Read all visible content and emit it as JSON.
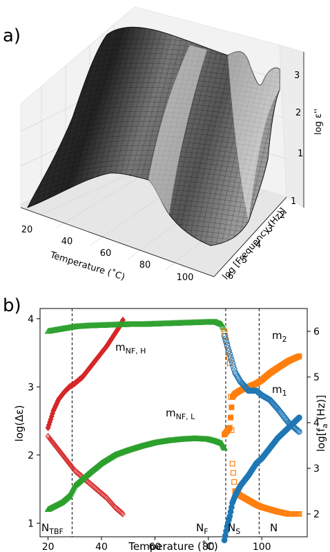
{
  "panel_a": {
    "label": "a)",
    "xlabel": "Temperature (˚C)",
    "ylabel": "log [Frequency (Hz)]",
    "zlabel": "log ε''",
    "x_ticks": [
      "20",
      "40",
      "60",
      "80",
      "100"
    ],
    "y_ticks": [
      "1",
      "2",
      "3",
      "4",
      "5",
      "6"
    ],
    "z_ticks": [
      "1",
      "2",
      "3"
    ]
  },
  "panel_b": {
    "label": "b)",
    "xlabel": "Temperature (˚C)",
    "ylabel_left": "log(Δε)",
    "ylabel_right": "log[f",
    "ylabel_right_sub": "a",
    "ylabel_right_end": " (Hz)]",
    "x_ticks": [
      "20",
      "40",
      "60",
      "80",
      "100"
    ],
    "y_left_ticks": [
      "1",
      "2",
      "3",
      "4"
    ],
    "y_right_ticks": [
      "2",
      "3",
      "4",
      "5",
      "6"
    ],
    "phases": [
      {
        "main": "N",
        "sub": "TBF"
      },
      {
        "main": "N",
        "sub": "F"
      },
      {
        "main": "N",
        "sub": "S"
      },
      {
        "main": "N",
        "sub": ""
      }
    ],
    "mode_labels": [
      {
        "main": "m",
        "sub": "NF, H"
      },
      {
        "main": "m",
        "sub": "NF, L"
      },
      {
        "main": "m",
        "sub": "2"
      },
      {
        "main": "m",
        "sub": "1"
      }
    ]
  },
  "chart_data": [
    {
      "type": "surface",
      "xlabel": "Temperature (˚C)",
      "ylabel": "log [Frequency (Hz)]",
      "zlabel": "log ε''",
      "xlim": [
        18,
        115
      ],
      "ylim": [
        0.5,
        6.5
      ],
      "zlim": [
        0,
        3.4
      ],
      "surface_ridge_profile": {
        "temperature": [
          20,
          30,
          40,
          50,
          60,
          70,
          80,
          84,
          87,
          90,
          95,
          100,
          105,
          110,
          114
        ],
        "peak_log_eps": [
          2.9,
          3.1,
          3.2,
          3.2,
          3.2,
          3.2,
          3.25,
          3.3,
          2.4,
          2.6,
          2.7,
          2.9,
          3.0,
          3.05,
          3.1
        ]
      },
      "grid": true
    },
    {
      "type": "scatter",
      "xlabel": "Temperature (˚C)",
      "ylabel": "log(Δε)",
      "y2label": "log[f_a (Hz)]",
      "xlim": [
        17,
        117
      ],
      "ylim": [
        0.8,
        4.15
      ],
      "y2lim": [
        1.5,
        6.5
      ],
      "vlines": [
        29,
        86.5,
        99
      ],
      "series": [
        {
          "name": "m_NF,H",
          "axis": "left",
          "marker": "filled-diamond",
          "color": "#d62728",
          "x": [
            20,
            22,
            24,
            26,
            28,
            30,
            33,
            36,
            39,
            42,
            45,
            47,
            48
          ],
          "y": [
            2.4,
            2.65,
            2.82,
            2.92,
            3.0,
            3.05,
            3.15,
            3.3,
            3.45,
            3.6,
            3.78,
            3.9,
            3.98
          ]
        },
        {
          "name": "m_NF,H",
          "axis": "right",
          "marker": "open-diamond",
          "color": "#d62728",
          "x": [
            20,
            22,
            24,
            26,
            28,
            30,
            33,
            36,
            39,
            42,
            45,
            47,
            48
          ],
          "y": [
            3.7,
            3.55,
            3.4,
            3.25,
            3.1,
            2.95,
            2.8,
            2.65,
            2.5,
            2.35,
            2.15,
            2.05,
            2.0
          ]
        },
        {
          "name": "m_NF,L",
          "axis": "left",
          "marker": "filled-triangle",
          "color": "#2ca02c",
          "x": [
            20,
            25,
            28,
            30,
            35,
            40,
            45,
            50,
            55,
            60,
            65,
            70,
            75,
            80,
            83,
            85,
            86
          ],
          "y": [
            1.2,
            1.3,
            1.4,
            1.55,
            1.72,
            1.88,
            2.0,
            2.07,
            2.13,
            2.18,
            2.21,
            2.23,
            2.24,
            2.23,
            2.2,
            2.17,
            2.1
          ]
        },
        {
          "name": "m_NF,L",
          "axis": "right",
          "marker": "open-triangle",
          "color": "#2ca02c",
          "x": [
            20,
            25,
            30,
            35,
            40,
            45,
            50,
            55,
            60,
            65,
            70,
            75,
            80,
            83,
            85,
            86
          ],
          "y": [
            6.0,
            6.05,
            6.1,
            6.12,
            6.13,
            6.14,
            6.15,
            6.15,
            6.16,
            6.17,
            6.18,
            6.19,
            6.2,
            6.2,
            6.15,
            6.05
          ]
        },
        {
          "name": "m_2",
          "axis": "left",
          "marker": "filled-square",
          "color": "#ff7f0e",
          "x": [
            86,
            87,
            88,
            89,
            90,
            92,
            95,
            98,
            100,
            103,
            106,
            110,
            114
          ],
          "y": [
            2.3,
            2.35,
            2.4,
            2.85,
            2.9,
            2.95,
            3.0,
            3.05,
            3.1,
            3.2,
            3.28,
            3.38,
            3.45
          ]
        },
        {
          "name": "m_2",
          "axis": "right",
          "marker": "open-square",
          "color": "#ff7f0e",
          "x": [
            86,
            87,
            88,
            89,
            90,
            92,
            95,
            98,
            100,
            103,
            106,
            110,
            114
          ],
          "y": [
            6.0,
            5.7,
            5.3,
            3.1,
            2.5,
            2.4,
            2.3,
            2.2,
            2.15,
            2.1,
            2.05,
            2.0,
            2.0
          ]
        },
        {
          "name": "m_1",
          "axis": "left",
          "marker": "filled-circle",
          "color": "#1f77b4",
          "x": [
            86,
            87,
            88,
            89,
            90,
            92,
            95,
            98,
            100,
            103,
            106,
            110,
            114
          ],
          "y": [
            0.75,
            0.95,
            1.1,
            1.3,
            1.4,
            1.55,
            1.7,
            1.88,
            1.95,
            2.1,
            2.25,
            2.4,
            2.55
          ]
        },
        {
          "name": "m_1",
          "axis": "right",
          "marker": "open-circle",
          "color": "#1f77b4",
          "x": [
            86,
            87,
            88,
            89,
            90,
            92,
            95,
            98,
            100,
            103,
            106,
            110,
            114
          ],
          "y": [
            5.9,
            5.7,
            5.5,
            5.3,
            5.1,
            4.9,
            4.7,
            4.7,
            4.6,
            4.5,
            4.3,
            4.0,
            3.8
          ]
        }
      ]
    }
  ]
}
